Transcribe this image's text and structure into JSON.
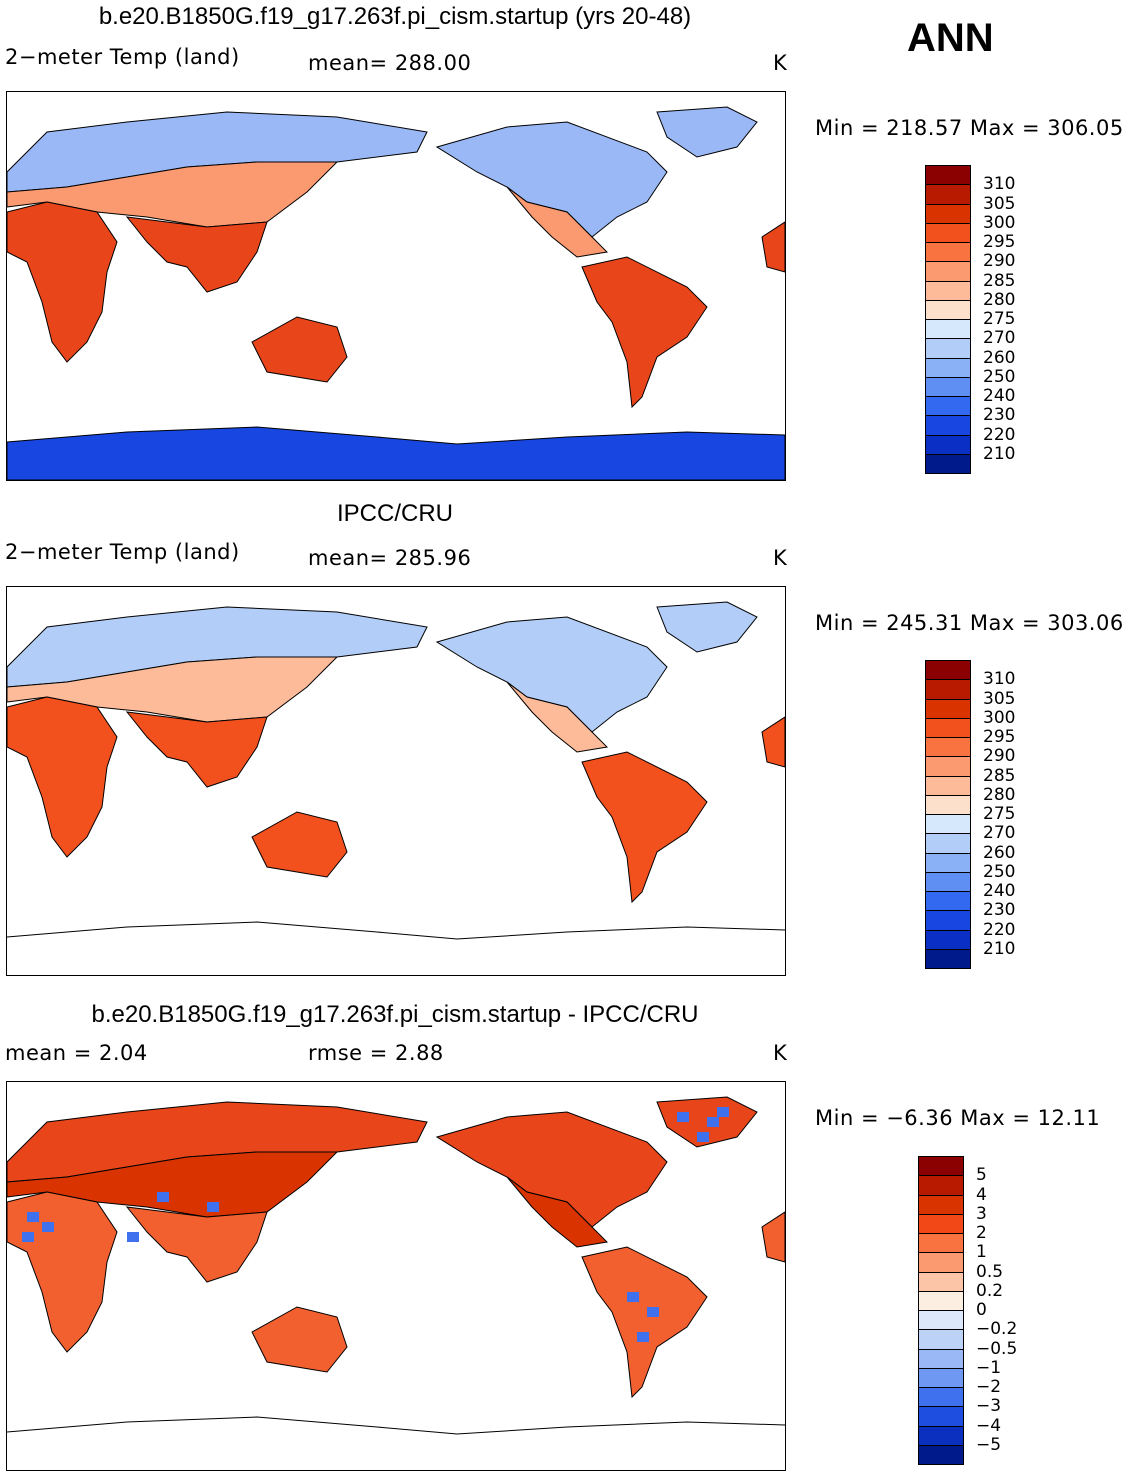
{
  "season_label": "ANN",
  "panels": [
    {
      "title": "b.e20.B1850G.f19_g17.263f.pi_cism.startup (yrs 20-48)",
      "left_label": "2−meter Temp (land)",
      "center_label": "mean=  288.00",
      "units": "K",
      "minmax": "Min  =  218.57  Max  =  306.05",
      "colorbar": {
        "labels": [
          "310",
          "305",
          "300",
          "295",
          "290",
          "285",
          "280",
          "275",
          "270",
          "260",
          "250",
          "240",
          "230",
          "220",
          "210"
        ],
        "colors": [
          "#8b0000",
          "#b81a00",
          "#d93300",
          "#f2501c",
          "#f97340",
          "#fb9a70",
          "#fdbb9a",
          "#fde0cc",
          "#d6e8fb",
          "#b2cdf7",
          "#8ab0f5",
          "#5f8ff2",
          "#3368f0",
          "#1846e0",
          "#0a2fc4",
          "#001a8c"
        ]
      },
      "map": {
        "type": "model",
        "antarctica": true,
        "land_temp_palette": "warm-cold"
      }
    },
    {
      "title": "IPCC/CRU",
      "left_label": "2−meter Temp (land)",
      "center_label": "mean=  285.96",
      "units": "K",
      "minmax": "Min  =  245.31  Max  =  303.06",
      "colorbar": {
        "labels": [
          "310",
          "305",
          "300",
          "295",
          "290",
          "285",
          "280",
          "275",
          "270",
          "260",
          "250",
          "240",
          "230",
          "220",
          "210"
        ],
        "colors": [
          "#8b0000",
          "#b81a00",
          "#d93300",
          "#f2501c",
          "#f97340",
          "#fb9a70",
          "#fdbb9a",
          "#fde0cc",
          "#d6e8fb",
          "#b2cdf7",
          "#8ab0f5",
          "#5f8ff2",
          "#3368f0",
          "#1846e0",
          "#0a2fc4",
          "#001a8c"
        ]
      },
      "map": {
        "type": "obs",
        "antarctica": false,
        "land_temp_palette": "warm-cold"
      }
    },
    {
      "title": "b.e20.B1850G.f19_g17.263f.pi_cism.startup - IPCC/CRU",
      "left_label": "mean  =     2.04",
      "center_label": "rmse  =     2.88",
      "units": "K",
      "minmax": "Min  =    −6.36  Max  =    12.11",
      "colorbar": {
        "labels": [
          "5",
          "4",
          "3",
          "2",
          "1",
          "0.5",
          "0.2",
          "0",
          "−0.2",
          "−0.5",
          "−1",
          "−2",
          "−3",
          "−4",
          "−5"
        ],
        "colors": [
          "#8b0000",
          "#b81a00",
          "#d93300",
          "#f24818",
          "#f97340",
          "#fb9a70",
          "#fdc5a8",
          "#fdeee2",
          "#dde9fb",
          "#bcd2f7",
          "#9ab8f5",
          "#6f98f2",
          "#3f70ee",
          "#1e4ee0",
          "#0b30c0",
          "#001a8c"
        ]
      },
      "map": {
        "type": "diff",
        "antarctica": false,
        "land_temp_palette": "diff"
      }
    }
  ],
  "chart_data": [
    {
      "type": "heatmap",
      "title": "b.e20.B1850G.f19_g17.263f.pi_cism.startup (yrs 20-48)",
      "variable": "2-meter Temp (land)",
      "units": "K",
      "mean": 288.0,
      "min": 218.57,
      "max": 306.05,
      "contour_levels": [
        210,
        220,
        230,
        240,
        250,
        260,
        270,
        275,
        280,
        285,
        290,
        295,
        300,
        305,
        310
      ]
    },
    {
      "type": "heatmap",
      "title": "IPCC/CRU",
      "variable": "2-meter Temp (land)",
      "units": "K",
      "mean": 285.96,
      "min": 245.31,
      "max": 303.06,
      "contour_levels": [
        210,
        220,
        230,
        240,
        250,
        260,
        270,
        275,
        280,
        285,
        290,
        295,
        300,
        305,
        310
      ]
    },
    {
      "type": "heatmap",
      "title": "b.e20.B1850G.f19_g17.263f.pi_cism.startup - IPCC/CRU",
      "units": "K",
      "mean": 2.04,
      "rmse": 2.88,
      "min": -6.36,
      "max": 12.11,
      "contour_levels": [
        -5,
        -4,
        -3,
        -2,
        -1,
        -0.5,
        -0.2,
        0,
        0.2,
        0.5,
        1,
        2,
        3,
        4,
        5
      ]
    }
  ]
}
